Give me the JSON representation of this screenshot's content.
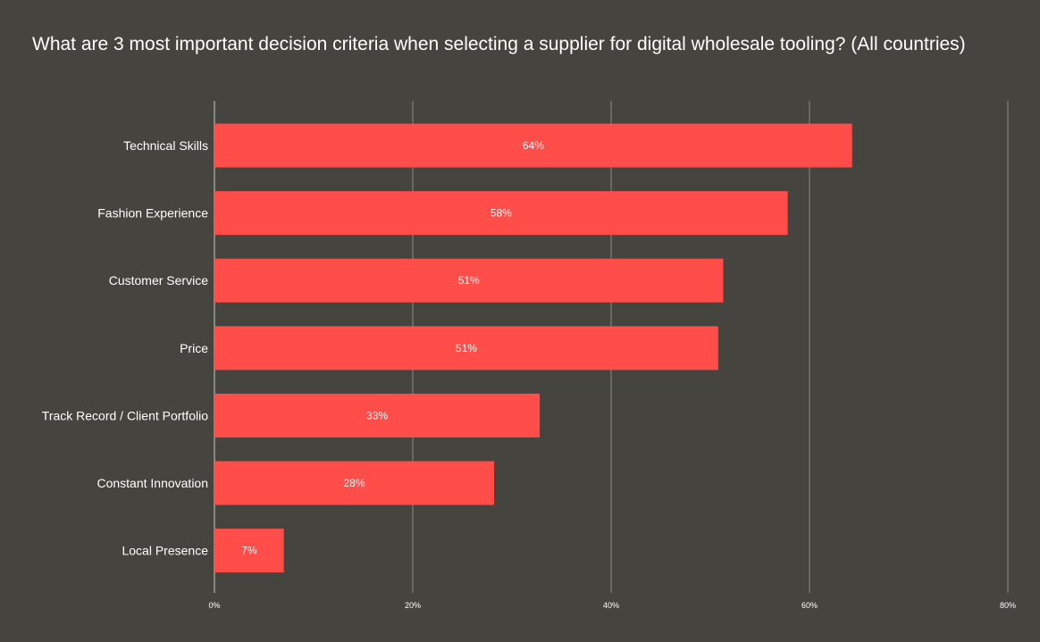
{
  "chart_data": {
    "type": "bar",
    "orientation": "horizontal",
    "title": "What are 3 most important decision criteria when selecting a supplier for digital wholesale tooling? (All countries)",
    "categories": [
      "Technical Skills",
      "Fashion Experience",
      "Customer Service",
      "Price",
      "Track Record / Client Portfolio",
      "Constant Innovation",
      "Local Presence"
    ],
    "values": [
      64.3,
      57.8,
      51.3,
      50.8,
      32.8,
      28.2,
      7
    ],
    "data_labels": [
      "64%",
      "58%",
      "51%",
      "51%",
      "33%",
      "28%",
      "7%"
    ],
    "xlim": [
      0,
      80
    ],
    "x_ticks": [
      0,
      20,
      40,
      60,
      80
    ],
    "x_tick_labels": [
      "0%",
      "20%",
      "40%",
      "60%",
      "80%"
    ],
    "grid": true,
    "legend": "none",
    "colors": {
      "background": "#45443f",
      "bar": "#ff4d4a",
      "grid": "#8c8b86",
      "text": "#ffffff"
    }
  }
}
